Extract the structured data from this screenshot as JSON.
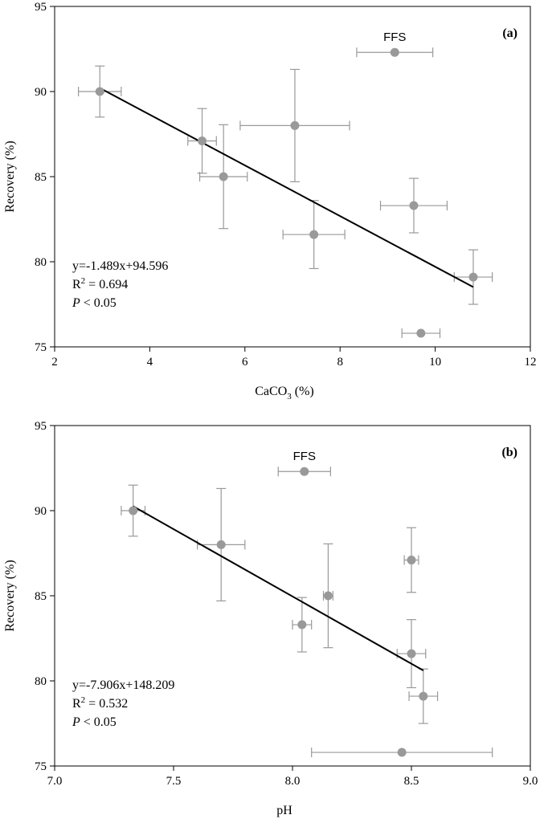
{
  "chart_data": [
    {
      "type": "scatter",
      "panel_label": "(a)",
      "xlabel": {
        "main": "CaCO",
        "sub": "3",
        "suffix": " (%)"
      },
      "ylabel": "Recovery (%)",
      "xlim": [
        2,
        12
      ],
      "ylim": [
        75,
        95
      ],
      "xticks": [
        "2",
        "4",
        "6",
        "8",
        "10",
        "12"
      ],
      "yticks": [
        "75",
        "80",
        "85",
        "90",
        "95"
      ],
      "xtick_values": [
        2,
        4,
        6,
        8,
        10,
        12
      ],
      "ytick_values": [
        75,
        80,
        85,
        90,
        95
      ],
      "marker_color": "#999999",
      "errorbar_color": "#999999",
      "fit_color": "#000000",
      "points": [
        {
          "x": 2.95,
          "y": 90.0,
          "xerr": 0.45,
          "yerr": 1.5
        },
        {
          "x": 5.1,
          "y": 87.1,
          "xerr": 0.3,
          "yerr": 1.9
        },
        {
          "x": 5.55,
          "y": 85.0,
          "xerr": 0.5,
          "yerr": 3.05
        },
        {
          "x": 7.05,
          "y": 88.0,
          "xerr": 1.15,
          "yerr": 3.3
        },
        {
          "x": 7.45,
          "y": 81.6,
          "xerr": 0.65,
          "yerr": 2.0
        },
        {
          "x": 9.55,
          "y": 83.3,
          "xerr": 0.7,
          "yerr": 1.6
        },
        {
          "x": 10.8,
          "y": 79.1,
          "xerr": 0.4,
          "yerr": 1.6
        },
        {
          "x": 9.7,
          "y": 75.8,
          "xerr": 0.4,
          "yerr": 0
        },
        {
          "x": 9.15,
          "y": 92.3,
          "xerr": 0.8,
          "yerr": 0,
          "label": "FFS"
        }
      ],
      "fit": {
        "x": [
          2.95,
          10.8
        ],
        "slope": -1.489,
        "intercept": 94.596
      },
      "annotation": {
        "equation": "y=-1.489x+94.596",
        "r2_prefix": "R",
        "r2_sup": "2",
        "r2_suffix": " = 0.694",
        "p_symbol": "P",
        "p_suffix": " < 0.05"
      }
    },
    {
      "type": "scatter",
      "panel_label": "(b)",
      "xlabel": {
        "main": "pH",
        "sub": "",
        "suffix": ""
      },
      "ylabel": "Recovery (%)",
      "xlim": [
        7.0,
        9.0
      ],
      "ylim": [
        75,
        95
      ],
      "xticks": [
        "7.0",
        "7.5",
        "8.0",
        "8.5",
        "9.0"
      ],
      "yticks": [
        "75",
        "80",
        "85",
        "90",
        "95"
      ],
      "xtick_values": [
        7.0,
        7.5,
        8.0,
        8.5,
        9.0
      ],
      "ytick_values": [
        75,
        80,
        85,
        90,
        95
      ],
      "marker_color": "#999999",
      "errorbar_color": "#999999",
      "fit_color": "#000000",
      "points": [
        {
          "x": 7.33,
          "y": 90.0,
          "xerr": 0.05,
          "yerr": 1.5
        },
        {
          "x": 7.7,
          "y": 88.0,
          "xerr": 0.1,
          "yerr": 3.3
        },
        {
          "x": 8.15,
          "y": 85.0,
          "xerr": 0.02,
          "yerr": 3.05
        },
        {
          "x": 8.04,
          "y": 83.3,
          "xerr": 0.04,
          "yerr": 1.6
        },
        {
          "x": 8.5,
          "y": 87.1,
          "xerr": 0.03,
          "yerr": 1.9
        },
        {
          "x": 8.5,
          "y": 81.6,
          "xerr": 0.06,
          "yerr": 2.0
        },
        {
          "x": 8.55,
          "y": 79.1,
          "xerr": 0.06,
          "yerr": 1.6
        },
        {
          "x": 8.46,
          "y": 75.8,
          "xerr": 0.38,
          "yerr": 0
        },
        {
          "x": 8.05,
          "y": 92.3,
          "xerr": 0.11,
          "yerr": 0,
          "label": "FFS"
        }
      ],
      "fit": {
        "x": [
          7.33,
          8.55
        ],
        "slope": -7.906,
        "intercept": 148.209
      },
      "annotation": {
        "equation": "y=-7.906x+148.209",
        "r2_prefix": "R",
        "r2_sup": "2",
        "r2_suffix": " = 0.532",
        "p_symbol": "P",
        "p_suffix": " < 0.05"
      }
    }
  ]
}
